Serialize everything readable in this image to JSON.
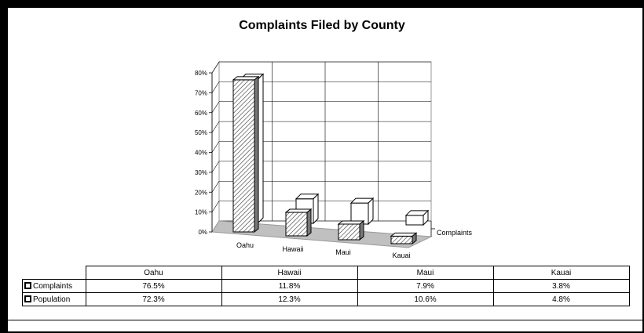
{
  "chart_data": {
    "type": "bar",
    "title": "Complaints Filed by County",
    "categories": [
      "Oahu",
      "Hawaii",
      "Maui",
      "Kauai"
    ],
    "depth_label": "Complaints",
    "ylim": [
      0,
      80
    ],
    "yticks": [
      "0%",
      "10%",
      "20%",
      "30%",
      "40%",
      "50%",
      "60%",
      "70%",
      "80%"
    ],
    "grid": true,
    "series": [
      {
        "name": "Complaints",
        "values": [
          76.5,
          11.8,
          7.9,
          3.8
        ]
      },
      {
        "name": "Population",
        "values": [
          72.3,
          12.3,
          10.6,
          4.8
        ]
      }
    ]
  },
  "table": {
    "columns": [
      "Oahu",
      "Hawaii",
      "Maui",
      "Kauai"
    ],
    "rows": [
      {
        "label": "Complaints",
        "cells": [
          "76.5%",
          "11.8%",
          "7.9%",
          "3.8%"
        ]
      },
      {
        "label": "Population",
        "cells": [
          "72.3%",
          "12.3%",
          "10.6%",
          "4.8%"
        ]
      }
    ]
  }
}
